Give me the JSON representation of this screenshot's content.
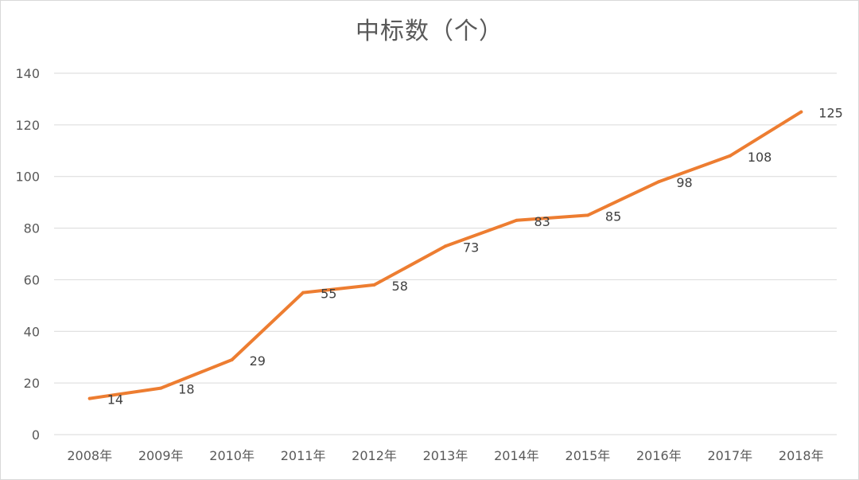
{
  "chart_data": {
    "type": "line",
    "title": "中标数（个）",
    "xlabel": "",
    "ylabel": "",
    "categories": [
      "2008年",
      "2009年",
      "2010年",
      "2011年",
      "2012年",
      "2013年",
      "2014年",
      "2015年",
      "2016年",
      "2017年",
      "2018年"
    ],
    "series": [
      {
        "values": [
          14,
          18,
          29,
          55,
          58,
          73,
          83,
          85,
          98,
          108,
          125
        ],
        "color": "#ed7d31"
      }
    ],
    "ylim": [
      0,
      140
    ],
    "yticks": [
      0,
      20,
      40,
      60,
      80,
      100,
      120,
      140
    ],
    "grid": true,
    "legend": "none",
    "data_labels": true
  }
}
